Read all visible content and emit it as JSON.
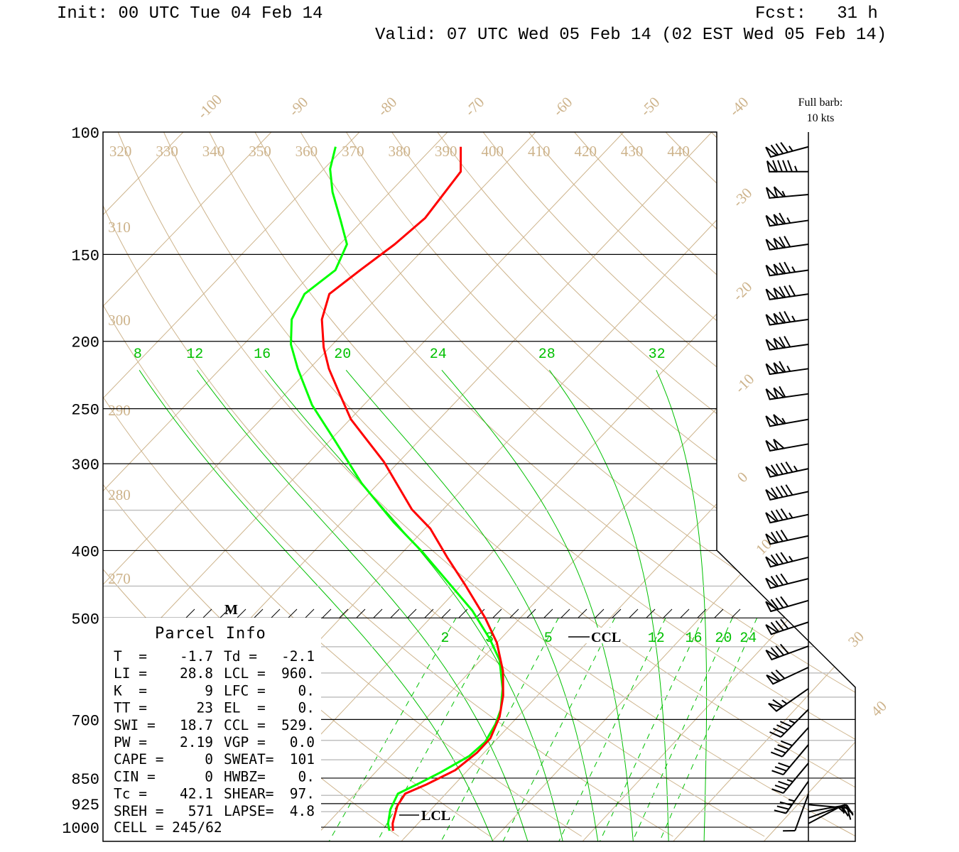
{
  "header": {
    "init": "Init: 00 UTC Tue 04 Feb 14",
    "fcst": "Fcst:   31 h",
    "valid": "Valid: 07 UTC Wed 05 Feb 14 (02 EST Wed 05 Feb 14)"
  },
  "barb_legend": {
    "line1": "Full barb:",
    "line2": "10 kts"
  },
  "parcel_info": {
    "title": "Parcel Info",
    "rows": [
      {
        "l1": "T  =",
        "v1": "-1.7",
        "l2": "Td =",
        "v2": "-2.1"
      },
      {
        "l1": "LI =",
        "v1": "28.8",
        "l2": "LCL =",
        "v2": "960."
      },
      {
        "l1": "K  =",
        "v1": "9",
        "l2": "LFC =",
        "v2": "0."
      },
      {
        "l1": "TT =",
        "v1": "23",
        "l2": "EL  =",
        "v2": "0."
      },
      {
        "l1": "SWI =",
        "v1": "18.7",
        "l2": "CCL =",
        "v2": "529."
      },
      {
        "l1": "PW =",
        "v1": "2.19",
        "l2": "VGP =",
        "v2": "0.0"
      },
      {
        "l1": "CAPE =",
        "v1": "0",
        "l2": "SWEAT=",
        "v2": "101"
      },
      {
        "l1": "CIN =",
        "v1": "0",
        "l2": "HWBZ=",
        "v2": "0."
      },
      {
        "l1": "Tc =",
        "v1": "42.1",
        "l2": "SHEAR=",
        "v2": "97."
      },
      {
        "l1": "SREH =",
        "v1": "571",
        "l2": "LAPSE=",
        "v2": "4.8"
      }
    ],
    "cell": "CELL = 245/62"
  },
  "markers": {
    "lcl": "LCL",
    "ccl": "CCL",
    "m": "M"
  },
  "colors": {
    "temperature": "#ff0000",
    "dewpoint": "#00ff00",
    "thermo_tan": "#cdb38b",
    "moist_green": "#00c000",
    "grid": "#000000",
    "minor_grid": "#c0c0c0"
  },
  "chart_data": {
    "type": "line",
    "subtype": "skew-T log-P sounding",
    "y_axis": {
      "scale": "log-pressure",
      "unit": "hPa",
      "range": [
        1050,
        100
      ],
      "tick_values": [
        100,
        150,
        200,
        250,
        300,
        400,
        500,
        700,
        850,
        925,
        1000
      ],
      "tick_labels": [
        "100",
        "150",
        "200",
        "250",
        "300",
        "400",
        "500",
        "700",
        "850",
        "925",
        "1000"
      ]
    },
    "minor_pressure_lines": [
      350,
      450,
      550,
      600,
      650,
      750,
      800,
      900,
      950
    ],
    "isotherm_values": [
      -110,
      -100,
      -90,
      -80,
      -70,
      -60,
      -50,
      -40,
      -30,
      -20,
      -10,
      0,
      10,
      20,
      30,
      40
    ],
    "isotherm_labels": [
      -100,
      -90,
      -80,
      -70,
      -60,
      -50,
      -40,
      -30,
      -20,
      -10,
      0,
      10,
      30,
      40
    ],
    "dry_adiabat_values": [
      240,
      250,
      260,
      270,
      280,
      290,
      300,
      310,
      320,
      330,
      340,
      350,
      360,
      370,
      380,
      390,
      400,
      410,
      420,
      430,
      440,
      450
    ],
    "dry_adiabat_top_labels": [
      320,
      330,
      340,
      350,
      360,
      370,
      380,
      390,
      400,
      410,
      420,
      430,
      440
    ],
    "dry_adiabat_left_labels": [
      310,
      300,
      290,
      280,
      270
    ],
    "moist_adiabat_values": [
      8,
      12,
      16,
      20,
      24,
      28,
      32
    ],
    "moist_adiabat_labels": [
      8,
      12,
      16,
      20,
      24,
      28,
      32
    ],
    "mixing_ratio_values": [
      2,
      3,
      5,
      8,
      12,
      16,
      20,
      24
    ],
    "mixing_ratio_labels": [
      2,
      3,
      5,
      12,
      16,
      20,
      24
    ],
    "lcl_pressure": 960,
    "ccl_pressure": 529,
    "series": [
      {
        "name": "temperature",
        "unit": "C",
        "points": [
          [
            105,
            -66.9
          ],
          [
            114,
            -64.2
          ],
          [
            133,
            -63.2
          ],
          [
            145,
            -63.8
          ],
          [
            158,
            -64.9
          ],
          [
            171,
            -65.8
          ],
          [
            186,
            -63.9
          ],
          [
            204,
            -60.7
          ],
          [
            219,
            -57.8
          ],
          [
            238,
            -53.9
          ],
          [
            259,
            -49.9
          ],
          [
            298,
            -41.7
          ],
          [
            349,
            -33.5
          ],
          [
            372,
            -29.4
          ],
          [
            409,
            -24.5
          ],
          [
            449,
            -19.5
          ],
          [
            500,
            -13.9
          ],
          [
            543,
            -10.0
          ],
          [
            596,
            -6.4
          ],
          [
            647,
            -3.8
          ],
          [
            694,
            -2.0
          ],
          [
            745,
            -0.8
          ],
          [
            781,
            -0.8
          ],
          [
            828,
            -1.4
          ],
          [
            868,
            -3.1
          ],
          [
            895,
            -4.5
          ],
          [
            932,
            -4.1
          ],
          [
            988,
            -2.8
          ],
          [
            1012,
            -2.0
          ]
        ]
      },
      {
        "name": "dewpoint",
        "unit": "C",
        "points": [
          [
            105,
            -81.1
          ],
          [
            113,
            -79.3
          ],
          [
            122,
            -76.5
          ],
          [
            134,
            -72.5
          ],
          [
            145,
            -69.2
          ],
          [
            158,
            -67.7
          ],
          [
            171,
            -68.6
          ],
          [
            186,
            -67.3
          ],
          [
            202,
            -64.7
          ],
          [
            219,
            -61.3
          ],
          [
            247,
            -55.8
          ],
          [
            277,
            -49.6
          ],
          [
            320,
            -41.9
          ],
          [
            364,
            -34.2
          ],
          [
            402,
            -27.8
          ],
          [
            444,
            -21.8
          ],
          [
            488,
            -16.1
          ],
          [
            536,
            -11.2
          ],
          [
            575,
            -7.9
          ],
          [
            632,
            -4.6
          ],
          [
            678,
            -2.6
          ],
          [
            711,
            -1.7
          ],
          [
            754,
            -1.0
          ],
          [
            790,
            -1.3
          ],
          [
            834,
            -2.8
          ],
          [
            864,
            -4.0
          ],
          [
            895,
            -5.3
          ],
          [
            943,
            -4.5
          ],
          [
            988,
            -3.3
          ],
          [
            1012,
            -2.4
          ]
        ]
      }
    ],
    "winds_unit": "kts",
    "winds": [
      {
        "p": 105,
        "dir": 255,
        "spd": 85
      },
      {
        "p": 114,
        "dir": 270,
        "spd": 95
      },
      {
        "p": 123,
        "dir": 265,
        "spd": 105
      },
      {
        "p": 134,
        "dir": 262,
        "spd": 115
      },
      {
        "p": 145,
        "dir": 262,
        "spd": 120
      },
      {
        "p": 158,
        "dir": 262,
        "spd": 125
      },
      {
        "p": 171,
        "dir": 262,
        "spd": 130
      },
      {
        "p": 186,
        "dir": 262,
        "spd": 125
      },
      {
        "p": 202,
        "dir": 262,
        "spd": 120
      },
      {
        "p": 219,
        "dir": 262,
        "spd": 115
      },
      {
        "p": 238,
        "dir": 262,
        "spd": 110
      },
      {
        "p": 259,
        "dir": 260,
        "spd": 105
      },
      {
        "p": 281,
        "dir": 260,
        "spd": 100
      },
      {
        "p": 305,
        "dir": 258,
        "spd": 95
      },
      {
        "p": 329,
        "dir": 258,
        "spd": 90
      },
      {
        "p": 355,
        "dir": 258,
        "spd": 85
      },
      {
        "p": 381,
        "dir": 258,
        "spd": 80
      },
      {
        "p": 409,
        "dir": 256,
        "spd": 85
      },
      {
        "p": 439,
        "dir": 256,
        "spd": 80
      },
      {
        "p": 472,
        "dir": 254,
        "spd": 80
      },
      {
        "p": 507,
        "dir": 252,
        "spd": 80
      },
      {
        "p": 549,
        "dir": 250,
        "spd": 80
      },
      {
        "p": 589,
        "dir": 245,
        "spd": 70
      },
      {
        "p": 632,
        "dir": 235,
        "spd": 65
      },
      {
        "p": 677,
        "dir": 225,
        "spd": 45
      },
      {
        "p": 719,
        "dir": 222,
        "spd": 40
      },
      {
        "p": 761,
        "dir": 220,
        "spd": 30
      },
      {
        "p": 809,
        "dir": 220,
        "spd": 35
      },
      {
        "p": 859,
        "dir": 215,
        "spd": 35
      },
      {
        "p": 896,
        "dir": 200,
        "spd": 10
      },
      {
        "p": 928,
        "dir": 95,
        "spd": 15
      },
      {
        "p": 950,
        "dir": 80,
        "spd": 20
      },
      {
        "p": 970,
        "dir": 70,
        "spd": 20
      },
      {
        "p": 988,
        "dir": 62,
        "spd": 15
      }
    ]
  }
}
